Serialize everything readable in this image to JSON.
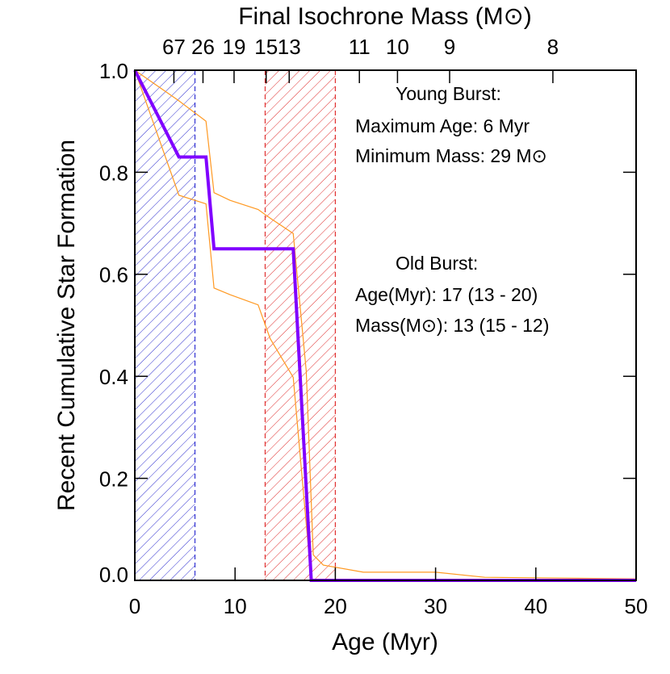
{
  "chart_data": {
    "type": "line",
    "xlabel": "Age (Myr)",
    "ylabel": "Recent Cumulative Star Formation",
    "x2label": "Final Isochrone Mass (M⊙)",
    "xlim": [
      0,
      50
    ],
    "ylim": [
      0,
      1
    ],
    "xticks": [
      0,
      10,
      20,
      30,
      40,
      50
    ],
    "yticks": [
      {
        "value": 0,
        "label": "0.0"
      },
      0.2,
      0.4,
      0.6,
      0.8,
      {
        "value": 1,
        "label": "1.0"
      }
    ],
    "x2ticks": [
      {
        "value": 3.9,
        "label": "67"
      },
      {
        "value": 6.8,
        "label": "26"
      },
      {
        "value": 9.9,
        "label": "19"
      },
      {
        "value": 13.1,
        "label": "15"
      },
      {
        "value": 15.4,
        "label": "13"
      },
      {
        "value": 22.4,
        "label": "11"
      },
      {
        "value": 26.2,
        "label": "10"
      },
      {
        "value": 31.4,
        "label": "9"
      },
      {
        "value": 41.7,
        "label": "8"
      }
    ],
    "spans": [
      {
        "x0": 0,
        "x1": 6,
        "color": "#3030d0"
      },
      {
        "x0": 13,
        "x1": 20,
        "color": "#e03030"
      }
    ],
    "series": [
      {
        "color": "#ff9922",
        "width": 1.2,
        "x": [
          0,
          4.4,
          7.1,
          7.9,
          9.5,
          12.3,
          13.5,
          15.8,
          17.1,
          17.8,
          18.8,
          22.8,
          30,
          34.9,
          50
        ],
        "values": [
          1.0,
          0.94,
          0.9,
          0.76,
          0.745,
          0.727,
          0.71,
          0.68,
          0.41,
          0.05,
          0.03,
          0.016,
          0.016,
          0.006,
          0.003
        ]
      },
      {
        "color": "#ff9922",
        "width": 1.2,
        "x": [
          0,
          4.4,
          7.1,
          7.9,
          9.5,
          12.3,
          13.5,
          15.8,
          17.6,
          50
        ],
        "values": [
          1.0,
          0.755,
          0.738,
          0.573,
          0.56,
          0.54,
          0.474,
          0.398,
          0.0,
          0.0
        ]
      },
      {
        "color": "#8000ff",
        "width": 4,
        "x": [
          0,
          4.4,
          7.1,
          7.9,
          15.8,
          17.6,
          50
        ],
        "values": [
          1.0,
          0.83,
          0.83,
          0.65,
          0.65,
          0.0,
          0.0
        ]
      }
    ],
    "annotations": [
      {
        "color": "#0000ff",
        "lines": [
          "Young Burst:",
          "Maximum Age: 6 Myr",
          "Minimum Mass: 29 M⊙"
        ]
      },
      {
        "color": "#ff0000",
        "lines": [
          "Old Burst:",
          "Age(Myr): 17 (13 - 20)",
          "Mass(M⊙): 13 (15 - 12)"
        ]
      }
    ]
  }
}
